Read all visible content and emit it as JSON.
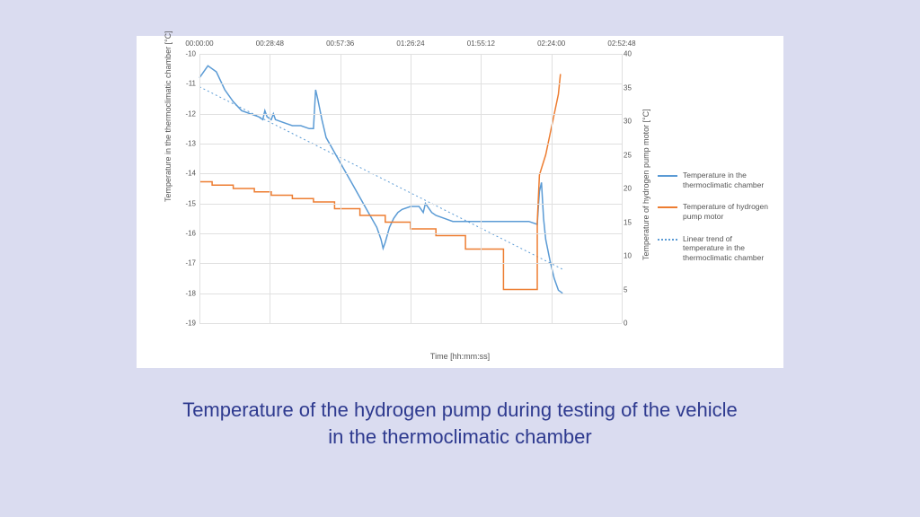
{
  "caption": "Temperature of the hydrogen pump during testing of the vehicle in the thermoclimatic chamber",
  "chart": {
    "background_color": "#ffffff",
    "page_background": "#dadcf0",
    "grid_color": "#e0e0e0",
    "text_color": "#555555",
    "caption_color": "#2e3a8f",
    "x": {
      "label": "Time [hh:mm:ss]",
      "ticks": [
        "00:00:00",
        "00:28:48",
        "00:57:36",
        "01:26:24",
        "01:55:12",
        "02:24:00",
        "02:52:48"
      ]
    },
    "yLeft": {
      "label": "Temperature in the thermoclimatic chamber [°C]",
      "min": -19,
      "max": -10,
      "ticks": [
        -10,
        -11,
        -12,
        -13,
        -14,
        -15,
        -16,
        -17,
        -18,
        -19
      ]
    },
    "yRight": {
      "label": "Temperature of hydrogen pump motor [°C]",
      "min": 0,
      "max": 40,
      "ticks": [
        40,
        35,
        30,
        25,
        20,
        15,
        10,
        5,
        0
      ]
    },
    "series": {
      "chamber": {
        "label": "Temperature in the thermoclimatic chamber",
        "color": "#5b9bd5",
        "width": 1.5,
        "axis": "left",
        "points": [
          [
            0,
            -10.8
          ],
          [
            0.02,
            -10.4
          ],
          [
            0.04,
            -10.6
          ],
          [
            0.06,
            -11.2
          ],
          [
            0.08,
            -11.6
          ],
          [
            0.1,
            -11.9
          ],
          [
            0.12,
            -12.0
          ],
          [
            0.14,
            -12.1
          ],
          [
            0.15,
            -12.2
          ],
          [
            0.155,
            -11.9
          ],
          [
            0.16,
            -12.1
          ],
          [
            0.17,
            -12.2
          ],
          [
            0.175,
            -12.0
          ],
          [
            0.18,
            -12.2
          ],
          [
            0.2,
            -12.3
          ],
          [
            0.22,
            -12.4
          ],
          [
            0.24,
            -12.4
          ],
          [
            0.26,
            -12.5
          ],
          [
            0.27,
            -12.5
          ],
          [
            0.275,
            -11.2
          ],
          [
            0.28,
            -11.5
          ],
          [
            0.29,
            -12.2
          ],
          [
            0.3,
            -12.8
          ],
          [
            0.32,
            -13.3
          ],
          [
            0.34,
            -13.8
          ],
          [
            0.36,
            -14.3
          ],
          [
            0.38,
            -14.8
          ],
          [
            0.4,
            -15.3
          ],
          [
            0.42,
            -15.8
          ],
          [
            0.43,
            -16.2
          ],
          [
            0.435,
            -16.5
          ],
          [
            0.44,
            -16.3
          ],
          [
            0.45,
            -15.8
          ],
          [
            0.46,
            -15.5
          ],
          [
            0.47,
            -15.3
          ],
          [
            0.48,
            -15.2
          ],
          [
            0.5,
            -15.1
          ],
          [
            0.52,
            -15.1
          ],
          [
            0.53,
            -15.3
          ],
          [
            0.535,
            -15.0
          ],
          [
            0.55,
            -15.3
          ],
          [
            0.56,
            -15.4
          ],
          [
            0.58,
            -15.5
          ],
          [
            0.6,
            -15.6
          ],
          [
            0.62,
            -15.6
          ],
          [
            0.65,
            -15.6
          ],
          [
            0.68,
            -15.6
          ],
          [
            0.72,
            -15.6
          ],
          [
            0.76,
            -15.6
          ],
          [
            0.78,
            -15.6
          ],
          [
            0.8,
            -15.7
          ],
          [
            0.805,
            -14.6
          ],
          [
            0.81,
            -14.3
          ],
          [
            0.815,
            -15.5
          ],
          [
            0.82,
            -16.2
          ],
          [
            0.83,
            -16.9
          ],
          [
            0.84,
            -17.5
          ],
          [
            0.85,
            -17.9
          ],
          [
            0.86,
            -18.0
          ]
        ]
      },
      "motor": {
        "label": "Temperature of hydrogen pump motor",
        "color": "#ed7d31",
        "width": 1.5,
        "axis": "right",
        "points": [
          [
            0,
            21.0
          ],
          [
            0.03,
            21.0
          ],
          [
            0.03,
            20.5
          ],
          [
            0.08,
            20.5
          ],
          [
            0.08,
            20.0
          ],
          [
            0.13,
            20.0
          ],
          [
            0.13,
            19.5
          ],
          [
            0.17,
            19.5
          ],
          [
            0.17,
            19.0
          ],
          [
            0.22,
            19.0
          ],
          [
            0.22,
            18.5
          ],
          [
            0.27,
            18.5
          ],
          [
            0.27,
            18.0
          ],
          [
            0.32,
            18.0
          ],
          [
            0.32,
            17.0
          ],
          [
            0.38,
            17.0
          ],
          [
            0.38,
            16.0
          ],
          [
            0.44,
            16.0
          ],
          [
            0.44,
            15.0
          ],
          [
            0.5,
            15.0
          ],
          [
            0.5,
            14.0
          ],
          [
            0.56,
            14.0
          ],
          [
            0.56,
            13.0
          ],
          [
            0.63,
            13.0
          ],
          [
            0.63,
            11.0
          ],
          [
            0.72,
            11.0
          ],
          [
            0.72,
            5.0
          ],
          [
            0.8,
            5.0
          ],
          [
            0.8,
            15.0
          ],
          [
            0.805,
            22.0
          ],
          [
            0.81,
            23.0
          ],
          [
            0.82,
            25.0
          ],
          [
            0.83,
            28.0
          ],
          [
            0.84,
            31.0
          ],
          [
            0.85,
            34.0
          ],
          [
            0.855,
            37.0
          ]
        ]
      },
      "trend": {
        "label": "Linear trend of temperature in the thermoclimatic chamber",
        "color": "#5b9bd5",
        "width": 1,
        "style": "dotted",
        "axis": "left",
        "points": [
          [
            0,
            -11.1
          ],
          [
            0.86,
            -17.2
          ]
        ]
      }
    },
    "legend_position": "right"
  }
}
